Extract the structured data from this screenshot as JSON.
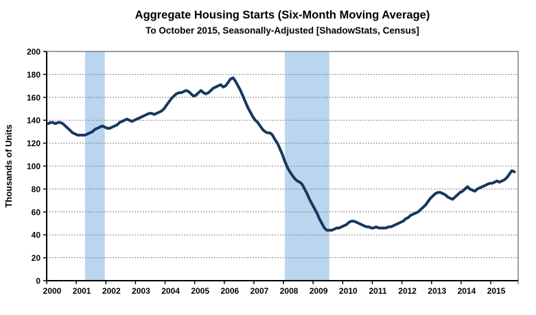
{
  "title": "Aggregate Housing Starts (Six-Month Moving Average)",
  "subtitle": "To October 2015, Seasonally-Adjusted [ShadowStats, Census]",
  "chart_data": {
    "type": "line",
    "title": "Aggregate Housing Starts (Six-Month Moving Average)",
    "subtitle": "To October 2015, Seasonally-Adjusted [ShadowStats, Census]",
    "ylabel": "Thousands of Units",
    "xlabel": "",
    "ylim": [
      0,
      200
    ],
    "ytick_interval": 20,
    "grid": true,
    "legend_position": "none",
    "x_start": "2000-01",
    "x_end": "2015-10",
    "x_tick_labels": [
      "2000",
      "2001",
      "2002",
      "2003",
      "2004",
      "2005",
      "2006",
      "2007",
      "2008",
      "2009",
      "2010",
      "2011",
      "2012",
      "2013",
      "2014",
      "2015"
    ],
    "recession_bands": [
      {
        "from": "2001-04",
        "to": "2001-12"
      },
      {
        "from": "2008-01",
        "to": "2009-07"
      }
    ],
    "band_color": "#BBD5EE",
    "band_checker_light": "#CFE2F4",
    "band_checker_dark": "#A6C8E8",
    "grid_color": "#7F7F7F",
    "frame_color": "#404040",
    "axis_color": "#000000",
    "series": [
      {
        "name": "Aggregate housing starts, six-month moving average",
        "color": "#17375E",
        "monthly_values": [
          137,
          138,
          138,
          137,
          138,
          138,
          137,
          135,
          133,
          131,
          129,
          128,
          127,
          127,
          127,
          127,
          128,
          129,
          130,
          132,
          133,
          134,
          135,
          134,
          133,
          133,
          134,
          135,
          136,
          138,
          139,
          140,
          141,
          140,
          139,
          140,
          141,
          142,
          143,
          144,
          145,
          146,
          146,
          145,
          146,
          147,
          148,
          150,
          153,
          156,
          159,
          161,
          163,
          164,
          164,
          165,
          166,
          165,
          163,
          161,
          162,
          164,
          166,
          164,
          163,
          164,
          166,
          168,
          169,
          170,
          171,
          169,
          170,
          173,
          176,
          177,
          174,
          170,
          166,
          161,
          156,
          151,
          147,
          143,
          140,
          138,
          135,
          132,
          130,
          129,
          129,
          127,
          123,
          120,
          115,
          110,
          104,
          99,
          95,
          92,
          89,
          87,
          86,
          84,
          80,
          76,
          71,
          67,
          63,
          59,
          54,
          50,
          46,
          44,
          44,
          44,
          45,
          46,
          46,
          47,
          48,
          49,
          51,
          52,
          52,
          51,
          50,
          49,
          48,
          47,
          47,
          46,
          46,
          47,
          46,
          46,
          46,
          46,
          47,
          47,
          48,
          49,
          50,
          51,
          52,
          54,
          55,
          57,
          58,
          59,
          60,
          62,
          64,
          66,
          69,
          72,
          74,
          76,
          77,
          77,
          76,
          75,
          73,
          72,
          71,
          73,
          75,
          77,
          78,
          80,
          82,
          80,
          79,
          78,
          80,
          81,
          82,
          83,
          84,
          85,
          85,
          86,
          87,
          86,
          87,
          88,
          90,
          93,
          96,
          95
        ]
      }
    ]
  }
}
